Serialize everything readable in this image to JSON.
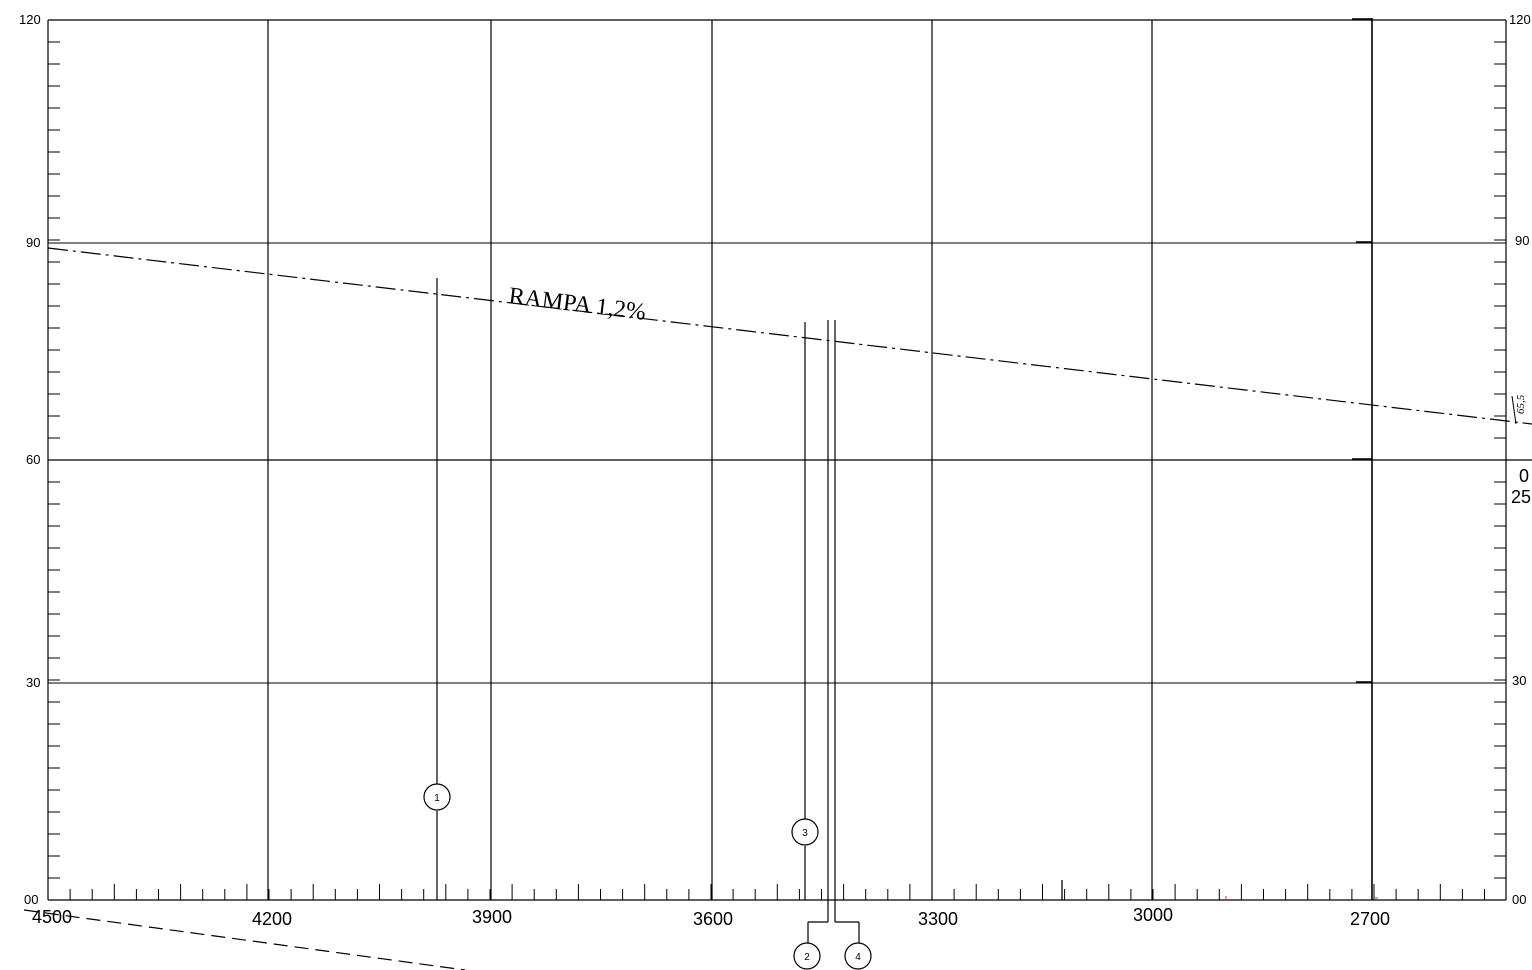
{
  "colors": {
    "line": "#000000",
    "background": "#ffffff",
    "accent_red": "#e53935"
  },
  "drawing": {
    "y_labels_left": [
      "120",
      "90",
      "60",
      "30",
      "00"
    ],
    "y_labels_right": [
      "120",
      "90",
      "30",
      "00"
    ],
    "x_labels": [
      "4500",
      "4200",
      "3900",
      "3600",
      "3300",
      "3000",
      "2700"
    ],
    "slope_label": "RAMPA 1,2%",
    "dimension_label": "65,5",
    "edge_text": [
      "0",
      "25"
    ],
    "markers": [
      "1",
      "2",
      "3",
      "4"
    ]
  }
}
